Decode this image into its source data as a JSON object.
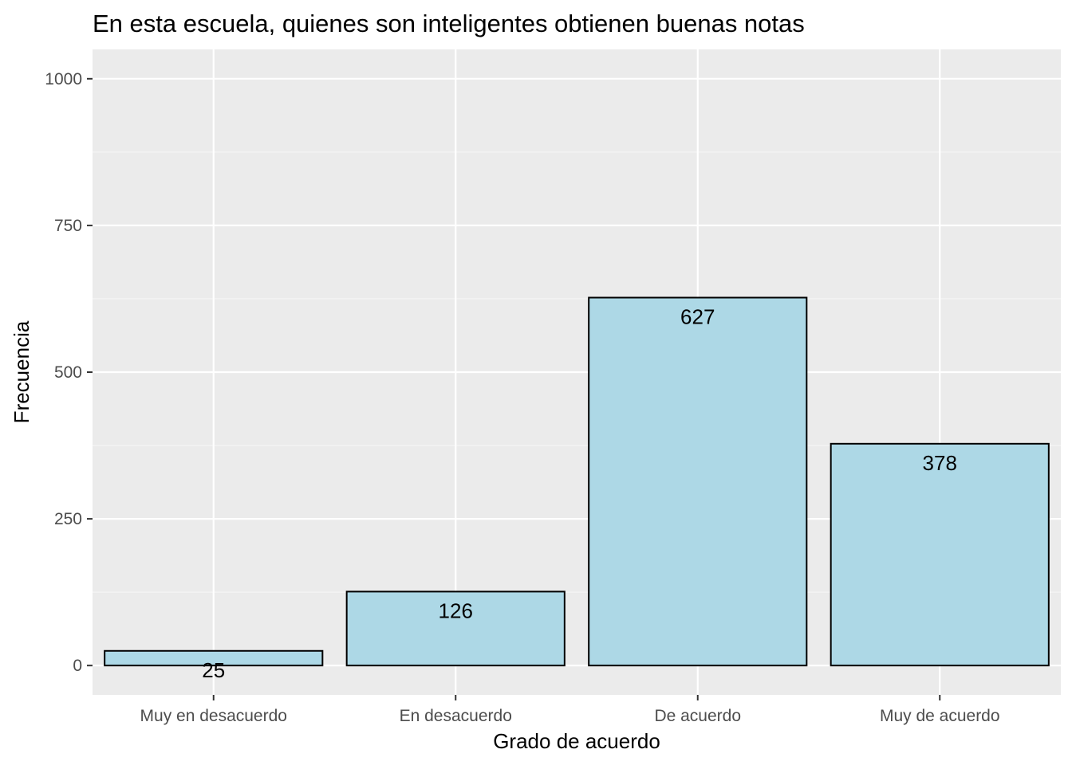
{
  "chart_data": {
    "type": "bar",
    "title": "En esta escuela, quienes son inteligentes obtienen buenas notas",
    "xlabel": "Grado de acuerdo",
    "ylabel": "Frecuencia",
    "categories": [
      "Muy en desacuerdo",
      "En desacuerdo",
      "De acuerdo",
      "Muy de acuerdo"
    ],
    "values": [
      25,
      126,
      627,
      378
    ],
    "data_labels": [
      "25",
      "126",
      "627",
      "378"
    ],
    "ylim": [
      -50,
      1050
    ],
    "yticks": [
      0,
      250,
      500,
      750,
      1000
    ],
    "ytick_labels": [
      "0",
      "250",
      "500",
      "750",
      "1000"
    ],
    "grid": true,
    "legend": "none",
    "colors": {
      "bar_fill": "#ADD8E6",
      "bar_stroke": "#000000",
      "panel_background": "#EBEBEB",
      "grid_major": "#FFFFFF",
      "grid_minor": "#F5F5F5"
    }
  }
}
